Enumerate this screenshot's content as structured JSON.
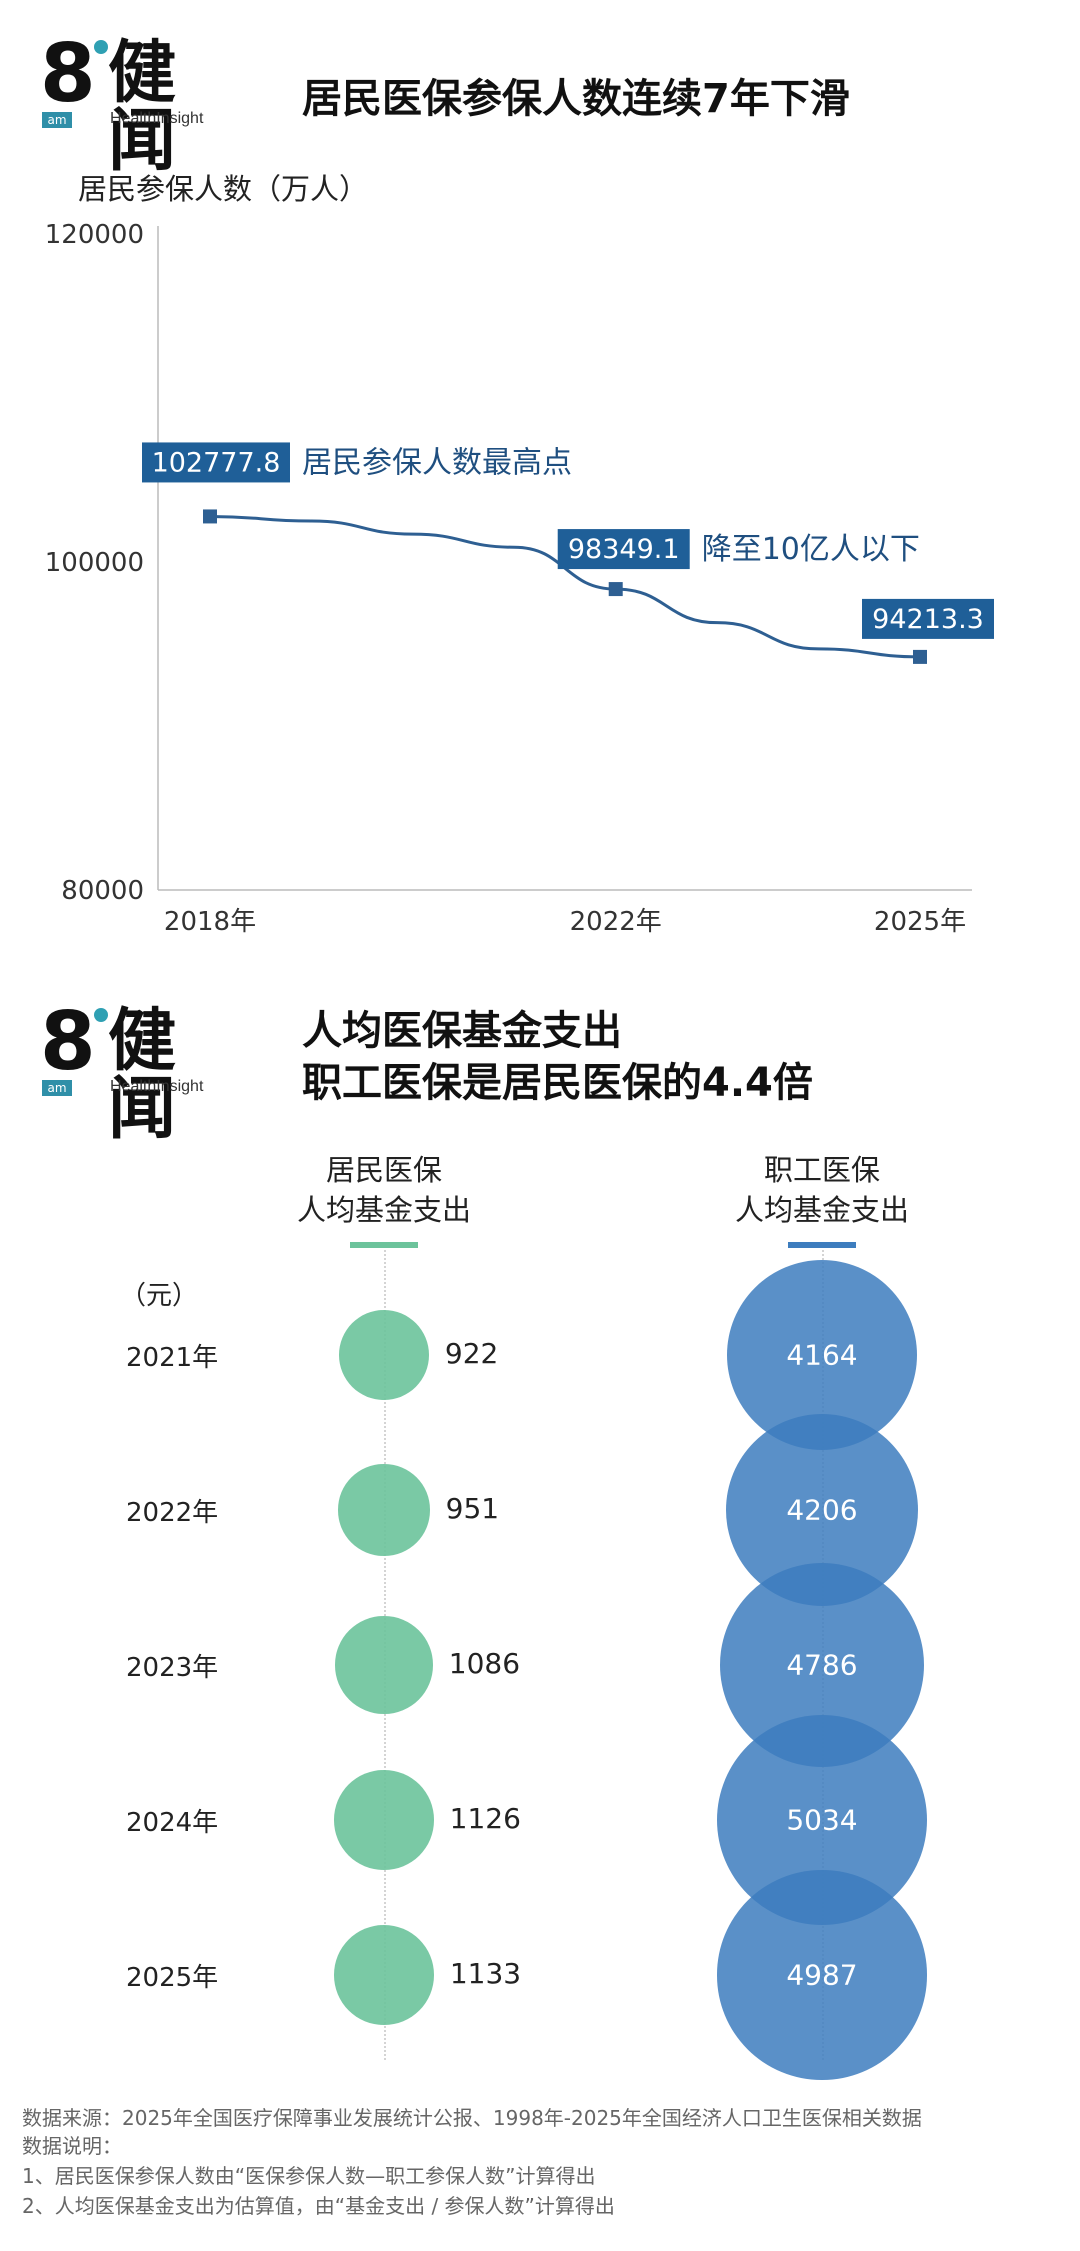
{
  "brand": {
    "logo_number": "8",
    "logo_name": "健闻",
    "logo_tag": "am",
    "logo_sub": "HealthInsight"
  },
  "section1": {
    "title": "居民医保参保人数连续7年下滑",
    "ylabel": "居民参保人数（万人）"
  },
  "section2": {
    "title_line1": "人均医保基金支出",
    "title_line2": "职工医保是居民医保的4.4倍",
    "unit": "（元）",
    "col_resident_line1": "居民医保",
    "col_resident_line2": "人均基金支出",
    "col_employee_line1": "职工医保",
    "col_employee_line2": "人均基金支出"
  },
  "footer": {
    "source": "数据来源：2025年全国医疗保障事业发展统计公报、1998年-2025年全国经济人口卫生医保相关数据",
    "note_title": "数据说明：",
    "note1": "1、居民医保参保人数由“医保参保人数—职工参保人数”计算得出",
    "note2": "2、人均医保基金支出为估算值，由“基金支出 / 参保人数”计算得出"
  },
  "colors": {
    "line": "#2e5f92",
    "callout": "#1f5f98",
    "resident": "#6cc39b",
    "employee": "#3d7dbe"
  },
  "chart_data": [
    {
      "type": "line",
      "title": "居民医保参保人数连续7年下滑",
      "ylabel": "居民参保人数（万人）",
      "ylim": [
        80000,
        120000
      ],
      "yticks": [
        "80000",
        "100000",
        "120000"
      ],
      "xticks": [
        "2018年",
        "2022年",
        "2025年"
      ],
      "x": [
        2018,
        2019,
        2020,
        2021,
        2022,
        2023,
        2024,
        2025
      ],
      "series": [
        {
          "values": [
            102777.8,
            102500,
            101700,
            100900,
            98349.1,
            96300,
            94700,
            94213.3
          ]
        }
      ],
      "annotations": [
        {
          "x": 2018,
          "value": "102777.8",
          "text": "居民参保人数最高点"
        },
        {
          "x": 2022,
          "value": "98349.1",
          "text": "降至10亿人以下"
        },
        {
          "x": 2025,
          "value": "94213.3",
          "text": ""
        }
      ]
    },
    {
      "type": "scatter",
      "title": "人均医保基金支出 职工医保是居民医保的4.4倍",
      "unit": "（元）",
      "categories": [
        "2021年",
        "2022年",
        "2023年",
        "2024年",
        "2025年"
      ],
      "series": [
        {
          "name": "居民医保 人均基金支出",
          "values": [
            922,
            951,
            1086,
            1126,
            1133
          ]
        },
        {
          "name": "职工医保 人均基金支出",
          "values": [
            4164,
            4206,
            4786,
            5034,
            4987
          ]
        }
      ]
    }
  ]
}
